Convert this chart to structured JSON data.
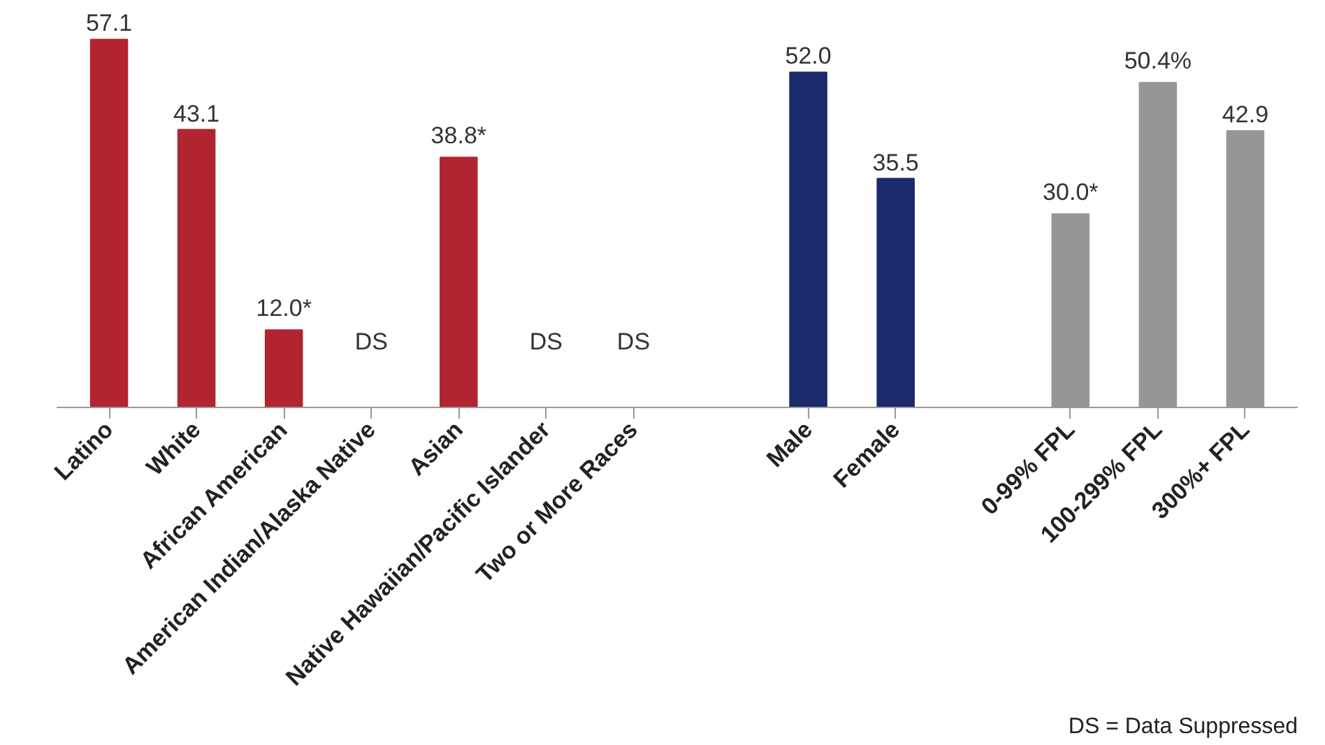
{
  "chart_data": {
    "type": "bar",
    "categories": [
      "Latino",
      "White",
      "African American",
      "American Indian/Alaska Native",
      "Asian",
      "Native Hawaiian/Pacific Islander",
      "Two or More Races",
      null,
      "Male",
      "Female",
      null,
      "0-99% FPL",
      "100-299% FPL",
      "300%+ FPL"
    ],
    "values": [
      57.1,
      43.1,
      12.0,
      null,
      38.8,
      null,
      null,
      null,
      52.0,
      35.5,
      null,
      30.0,
      50.4,
      42.9
    ],
    "value_labels": [
      "57.1",
      "43.1",
      "12.0*",
      "DS",
      "38.8*",
      "DS",
      "DS",
      null,
      "52.0",
      "35.5",
      null,
      "30.0*",
      "50.4%",
      "42.9"
    ],
    "colors": [
      "#b0252f",
      "#b0252f",
      "#b0252f",
      "#b0252f",
      "#b0252f",
      "#b0252f",
      "#b0252f",
      "#b0252f",
      "#1b2a6b",
      "#1b2a6b",
      "#969696",
      "#969696",
      "#969696",
      "#969696"
    ],
    "annotations": [
      "DS = Data Suppressed"
    ],
    "grid": false
  }
}
